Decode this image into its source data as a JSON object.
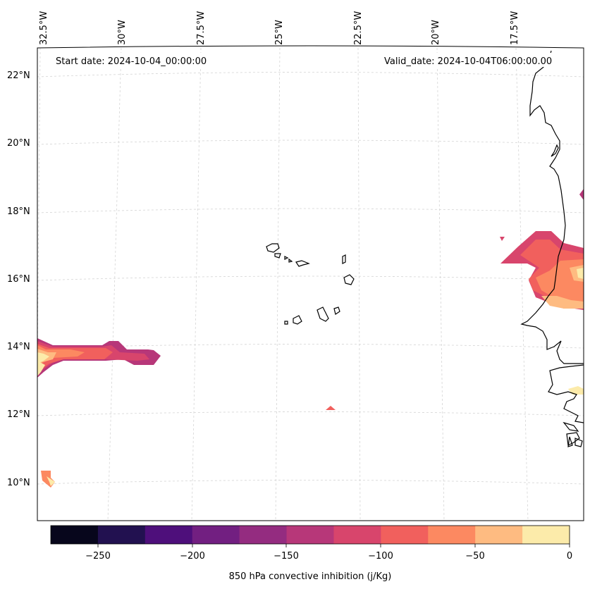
{
  "header": {
    "start_date": "Start date: 2024-10-04_00:00:00",
    "valid_date": "Valid_date: 2024-10-04T06:00:00.00"
  },
  "lon_labels": [
    "32.5°W",
    "30°W",
    "27.5°W",
    "25°W",
    "22.5°W",
    "20°W",
    "17.5°W"
  ],
  "lat_labels": [
    "22°N",
    "20°N",
    "18°N",
    "16°N",
    "14°N",
    "12°N",
    "10°N"
  ],
  "colorbar": {
    "title": "850 hPa convective inhibition (j/Kg)",
    "tick_labels": [
      "−250",
      "−200",
      "−150",
      "−100",
      "−50",
      "0"
    ],
    "levels": [
      -275,
      -250,
      -225,
      -200,
      -175,
      -150,
      -125,
      -100,
      -75,
      -50,
      -25,
      0
    ],
    "colors": [
      "#07061c",
      "#221150",
      "#4e0f7b",
      "#721f81",
      "#942c80",
      "#b73779",
      "#d8456c",
      "#f1605d",
      "#fc8961",
      "#febb81",
      "#fcebaa"
    ],
    "colormap": "magma"
  },
  "map": {
    "projection": "lambert-conformal",
    "extent": {
      "lon_min": -32.7,
      "lon_max": -15.7,
      "lat_min": 9.0,
      "lat_max": 22.8
    },
    "gridlines": "dashed-light-gray",
    "coastline_color": "#000000",
    "islands": "Cape Verde"
  }
}
